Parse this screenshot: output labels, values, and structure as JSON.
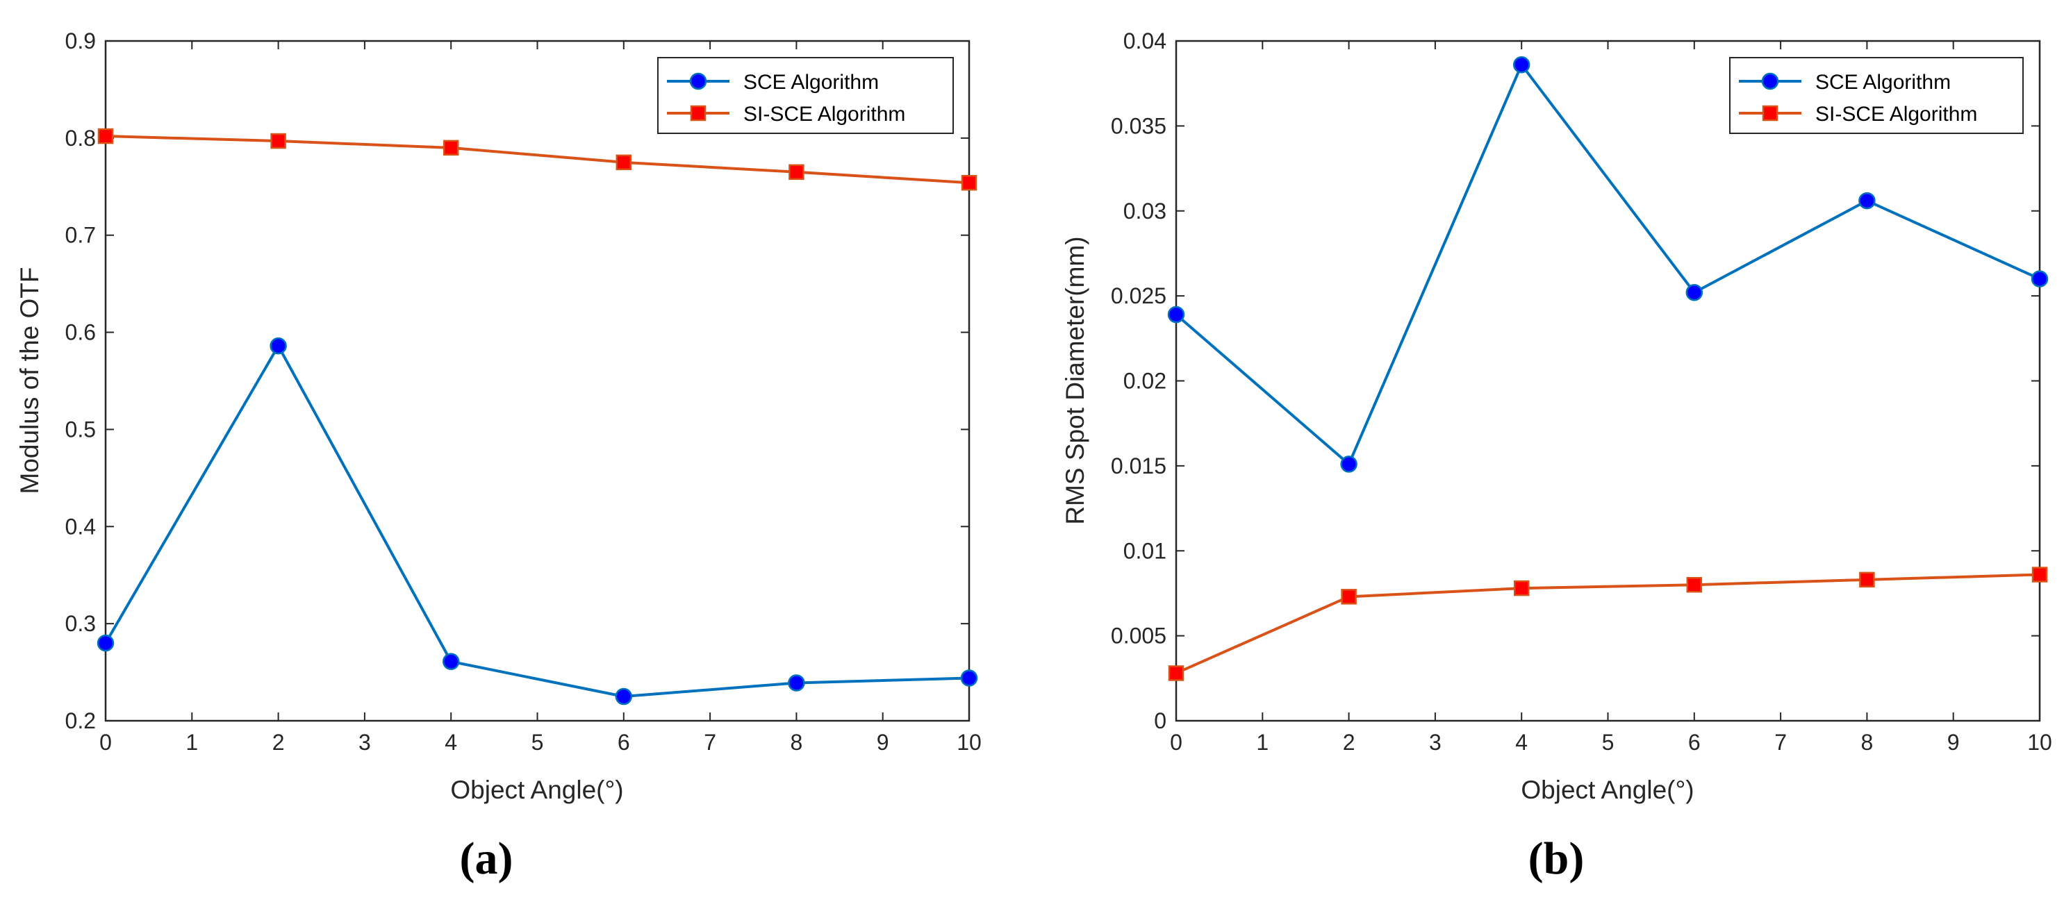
{
  "chart_data": [
    {
      "type": "line",
      "panel_label": "(a)",
      "xlabel": "Object Angle(°)",
      "ylabel": "Modulus of the OTF",
      "xlim": [
        0,
        10
      ],
      "ylim": [
        0.2,
        0.9
      ],
      "xticks": [
        0,
        1,
        2,
        3,
        4,
        5,
        6,
        7,
        8,
        9,
        10
      ],
      "yticks": [
        0.2,
        0.3,
        0.4,
        0.5,
        0.6,
        0.7,
        0.8,
        0.9
      ],
      "ytick_labels": [
        "0.2",
        "0.3",
        "0.4",
        "0.5",
        "0.6",
        "0.7",
        "0.8",
        "0.9"
      ],
      "legend_position": "top-right",
      "series": [
        {
          "name": "SCE Algorithm",
          "marker": "circle",
          "color": "#0072BD",
          "marker_fill": "#0000FF",
          "x": [
            0,
            2,
            4,
            6,
            8,
            10
          ],
          "y": [
            0.28,
            0.586,
            0.261,
            0.225,
            0.239,
            0.244
          ]
        },
        {
          "name": "SI-SCE Algorithm",
          "marker": "square",
          "color": "#D95319",
          "marker_fill": "#FF0000",
          "x": [
            0,
            2,
            4,
            6,
            8,
            10
          ],
          "y": [
            0.802,
            0.797,
            0.79,
            0.775,
            0.765,
            0.754
          ]
        }
      ]
    },
    {
      "type": "line",
      "panel_label": "(b)",
      "xlabel": "Object Angle(°)",
      "ylabel": "RMS Spot Diameter(mm)",
      "xlim": [
        0,
        10
      ],
      "ylim": [
        0,
        0.04
      ],
      "xticks": [
        0,
        1,
        2,
        3,
        4,
        5,
        6,
        7,
        8,
        9,
        10
      ],
      "yticks": [
        0,
        0.005,
        0.01,
        0.015,
        0.02,
        0.025,
        0.03,
        0.035,
        0.04
      ],
      "ytick_labels": [
        "0",
        "0.005",
        "0.01",
        "0.015",
        "0.02",
        "0.025",
        "0.03",
        "0.035",
        "0.04"
      ],
      "legend_position": "top-right",
      "series": [
        {
          "name": "SCE Algorithm",
          "marker": "circle",
          "color": "#0072BD",
          "marker_fill": "#0000FF",
          "x": [
            0,
            2,
            4,
            6,
            8,
            10
          ],
          "y": [
            0.0239,
            0.0151,
            0.0386,
            0.0252,
            0.0306,
            0.026
          ]
        },
        {
          "name": "SI-SCE Algorithm",
          "marker": "square",
          "color": "#D95319",
          "marker_fill": "#FF0000",
          "x": [
            0,
            2,
            4,
            6,
            8,
            10
          ],
          "y": [
            0.0028,
            0.0073,
            0.0078,
            0.008,
            0.0083,
            0.0086
          ]
        }
      ]
    }
  ]
}
